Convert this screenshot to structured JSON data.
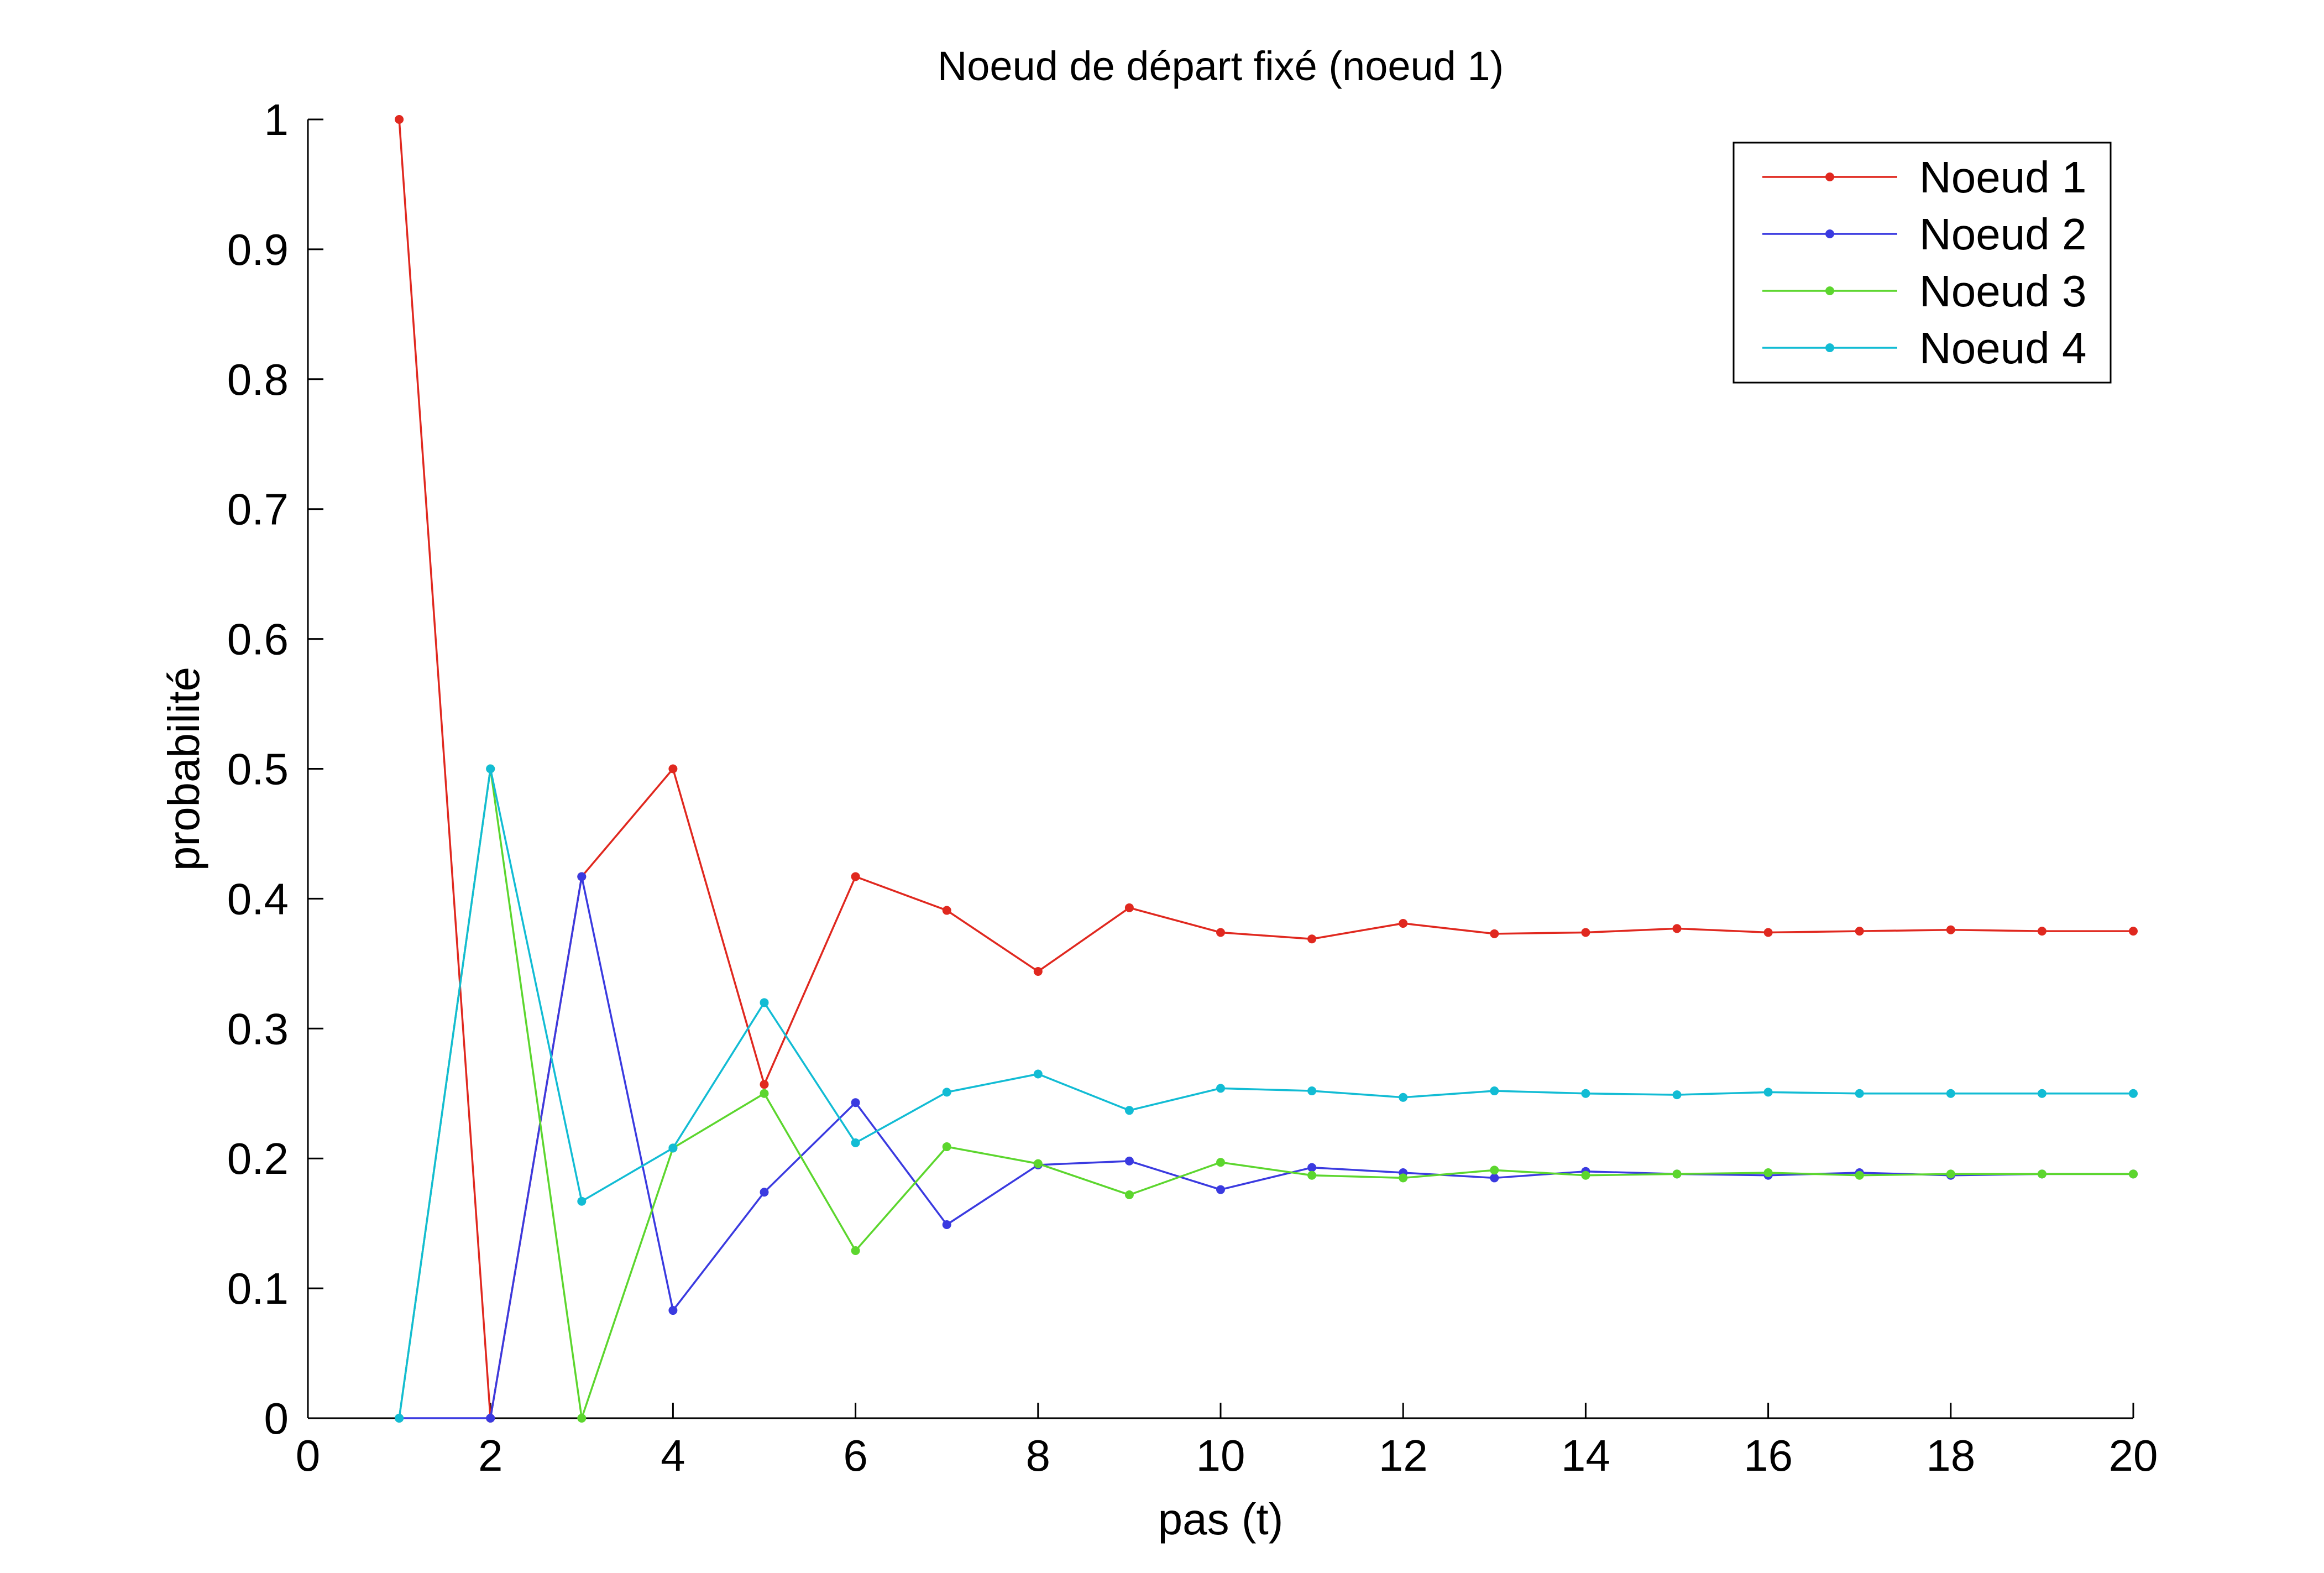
{
  "chart_data": {
    "type": "line",
    "title": "Noeud de départ fixé (noeud 1)",
    "xlabel": "pas (t)",
    "ylabel": "probabilité",
    "xlim": [
      0,
      20
    ],
    "ylim": [
      0,
      1
    ],
    "xticks": [
      "0",
      "2",
      "4",
      "6",
      "8",
      "10",
      "12",
      "14",
      "16",
      "18",
      "20"
    ],
    "yticks": [
      "0",
      "0.1",
      "0.2",
      "0.3",
      "0.4",
      "0.5",
      "0.6",
      "0.7",
      "0.8",
      "0.9",
      "1"
    ],
    "grid": false,
    "legend_position": "top-right",
    "x": [
      1,
      2,
      3,
      4,
      5,
      6,
      7,
      8,
      9,
      10,
      11,
      12,
      13,
      14,
      15,
      16,
      17,
      18,
      19,
      20
    ],
    "series": [
      {
        "name": "Noeud 1",
        "color": "#e0281f",
        "values": [
          1.0,
          0.0,
          0.417,
          0.5,
          0.257,
          0.417,
          0.391,
          0.344,
          0.393,
          0.374,
          0.369,
          0.381,
          0.373,
          0.374,
          0.377,
          0.374,
          0.375,
          0.376,
          0.375,
          0.375
        ]
      },
      {
        "name": "Noeud 2",
        "color": "#3a3ae0",
        "values": [
          0.0,
          0.0,
          0.417,
          0.083,
          0.174,
          0.243,
          0.149,
          0.195,
          0.198,
          0.176,
          0.193,
          0.189,
          0.185,
          0.19,
          0.188,
          0.187,
          0.189,
          0.187,
          0.188,
          0.188
        ]
      },
      {
        "name": "Noeud 3",
        "color": "#5cd62e",
        "values": [
          0.0,
          0.5,
          0.0,
          0.208,
          0.25,
          0.129,
          0.209,
          0.196,
          0.172,
          0.197,
          0.187,
          0.185,
          0.191,
          0.187,
          0.188,
          0.189,
          0.187,
          0.188,
          0.188,
          0.188
        ]
      },
      {
        "name": "Noeud 4",
        "color": "#12bcd4",
        "values": [
          0.0,
          0.5,
          0.167,
          0.208,
          0.32,
          0.212,
          0.251,
          0.265,
          0.237,
          0.254,
          0.252,
          0.247,
          0.252,
          0.25,
          0.249,
          0.251,
          0.25,
          0.25,
          0.25,
          0.25
        ]
      }
    ]
  }
}
